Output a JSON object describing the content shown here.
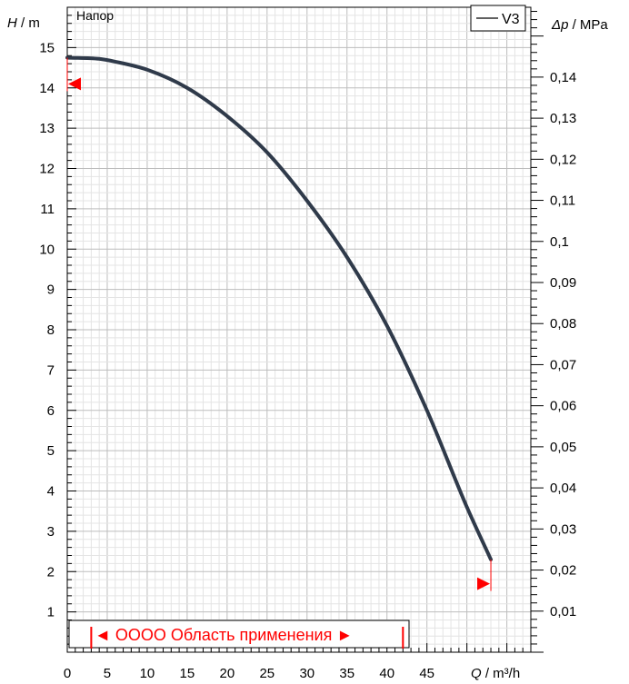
{
  "chart_data": {
    "type": "line",
    "title": "Напор",
    "xlabel": {
      "symbol": "Q",
      "unit": " / m³/h"
    },
    "ylabel": {
      "symbol": "H",
      "unit": " / m"
    },
    "y2label": {
      "symbol": "Δp",
      "unit": " / MPa"
    },
    "xlim": [
      0,
      58
    ],
    "ylim": [
      0,
      16
    ],
    "y2lim": [
      0,
      0.157
    ],
    "x_ticks": [
      "0",
      "5",
      "10",
      "15",
      "20",
      "25",
      "30",
      "35",
      "40",
      "45"
    ],
    "y_ticks": [
      "1",
      "2",
      "3",
      "4",
      "5",
      "6",
      "7",
      "8",
      "9",
      "10",
      "11",
      "12",
      "13",
      "14",
      "15"
    ],
    "y2_ticks": [
      "0,01",
      "0,02",
      "0,03",
      "0,04",
      "0,05",
      "0,06",
      "0,07",
      "0,08",
      "0,09",
      "0,1",
      "0,11",
      "0,12",
      "0,13",
      "0,14"
    ],
    "grid": true,
    "legend": "top-right",
    "series": [
      {
        "name": "V3",
        "color": "#2f3a4a",
        "x": [
          0,
          4,
          6,
          10,
          15,
          20,
          25,
          30,
          35,
          40,
          45,
          50,
          53
        ],
        "y": [
          14.75,
          14.72,
          14.65,
          14.45,
          14.0,
          13.3,
          12.4,
          11.2,
          9.8,
          8.1,
          6.0,
          3.6,
          2.3
        ]
      }
    ],
    "markers": [
      {
        "x": 0,
        "y": 14.1,
        "direction": "left",
        "color": "#ff0000"
      },
      {
        "x": 53,
        "y": 1.7,
        "direction": "right",
        "color": "#ff0000"
      }
    ],
    "application_range": {
      "label": "◄ OOOO Область применения ►",
      "x_start": 3,
      "x_end": 42,
      "color": "#ff0000"
    }
  }
}
